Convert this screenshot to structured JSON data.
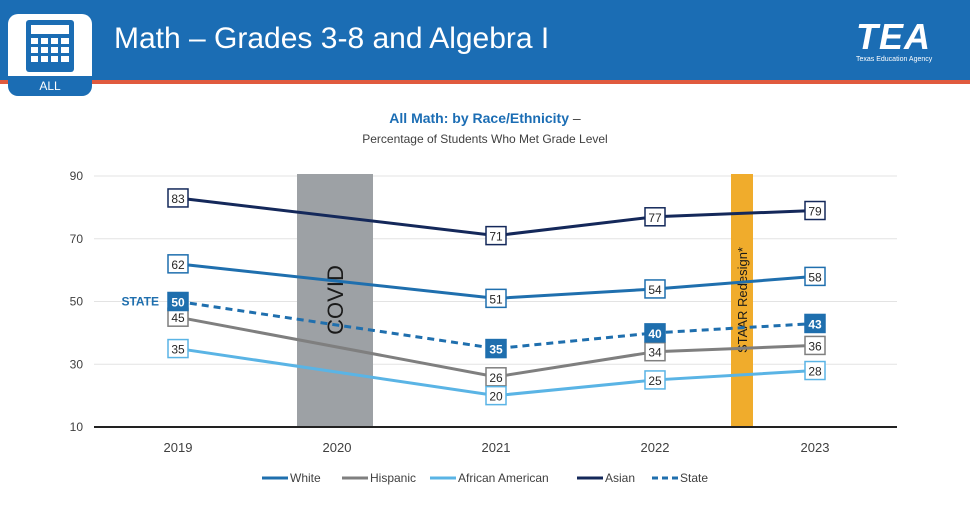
{
  "header": {
    "title": "Math – Grades 3-8 and Algebra I",
    "badge_label": "ALL",
    "logo_text": "TEA",
    "logo_subtitle": "Texas Education Agency"
  },
  "chart_data": {
    "type": "line",
    "title": "All Math: by Race/Ethnicity",
    "title_suffix": "–",
    "subtitle": "Percentage of Students Who Met Grade Level",
    "categories": [
      "2019",
      "2020",
      "2021",
      "2022",
      "2023"
    ],
    "ylim": [
      10,
      90
    ],
    "yticks": [
      10,
      30,
      50,
      70,
      90
    ],
    "grid": true,
    "legend_position": "bottom",
    "series": [
      {
        "name": "White",
        "values": [
          62,
          null,
          51,
          54,
          58
        ],
        "color": "#1f6fae",
        "dashed": false,
        "label_style": "outline"
      },
      {
        "name": "Hispanic",
        "values": [
          45,
          null,
          26,
          34,
          36
        ],
        "color": "#7f7f7f",
        "dashed": false,
        "label_style": "outline"
      },
      {
        "name": "African American",
        "values": [
          35,
          null,
          20,
          25,
          28
        ],
        "color": "#5ab4e5",
        "dashed": false,
        "label_style": "outline"
      },
      {
        "name": "Asian",
        "values": [
          83,
          null,
          71,
          77,
          79
        ],
        "color": "#14285a",
        "dashed": false,
        "label_style": "outline"
      },
      {
        "name": "State",
        "values": [
          50,
          null,
          35,
          40,
          43
        ],
        "color": "#1f6fae",
        "dashed": true,
        "label_style": "filled"
      }
    ],
    "annotations": {
      "state_label": "STATE",
      "covid_label": "COVID",
      "covid_category": "2020",
      "covid_color": "#9da1a5",
      "staar_label": "STAAR Redesign*",
      "staar_color": "#f0ac2c"
    }
  }
}
